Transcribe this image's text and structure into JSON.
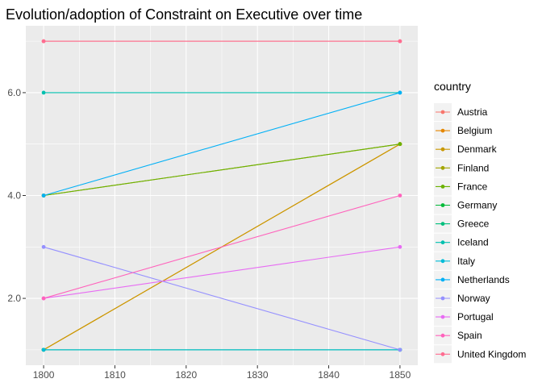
{
  "chart_data": {
    "type": "line",
    "title": "Evolution/adoption of Constraint on Executive over time",
    "xlabel": "",
    "ylabel": "",
    "xlim": [
      1800,
      1850
    ],
    "ylim": [
      1,
      7
    ],
    "x_ticks": [
      1800,
      1810,
      1820,
      1830,
      1840,
      1850
    ],
    "x_tick_labels": [
      "1800",
      "1810",
      "1820",
      "1830",
      "1840",
      "1850"
    ],
    "y_ticks": [
      2,
      4,
      6
    ],
    "y_tick_labels": [
      "2.0",
      "4.0",
      "6.0"
    ],
    "grid": true,
    "legend": {
      "title": "country",
      "position": "right"
    },
    "series": [
      {
        "name": "Austria",
        "color": "#F8766D",
        "x": [
          1800,
          1850
        ],
        "y": [
          7,
          7
        ]
      },
      {
        "name": "Belgium",
        "color": "#E58700",
        "x": [
          1800,
          1850
        ],
        "y": [
          1,
          5
        ]
      },
      {
        "name": "Denmark",
        "color": "#C99800",
        "x": [
          1800,
          1850
        ],
        "y": [
          1,
          5
        ]
      },
      {
        "name": "Finland",
        "color": "#A3A500",
        "x": [
          1800,
          1850
        ],
        "y": [
          4,
          5
        ]
      },
      {
        "name": "France",
        "color": "#6BB100",
        "x": [
          1800,
          1850
        ],
        "y": [
          4,
          5
        ]
      },
      {
        "name": "Germany",
        "color": "#00BA38",
        "x": [
          1800,
          1850
        ],
        "y": [
          1,
          1
        ]
      },
      {
        "name": "Greece",
        "color": "#00BF7D",
        "x": [
          1800,
          1850
        ],
        "y": [
          1,
          1
        ]
      },
      {
        "name": "Iceland",
        "color": "#00C0AF",
        "x": [
          1800,
          1850
        ],
        "y": [
          6,
          6
        ]
      },
      {
        "name": "Italy",
        "color": "#00BCD8",
        "x": [
          1800,
          1850
        ],
        "y": [
          1,
          1
        ]
      },
      {
        "name": "Netherlands",
        "color": "#00B0F6",
        "x": [
          1800,
          1850
        ],
        "y": [
          4,
          6
        ]
      },
      {
        "name": "Norway",
        "color": "#9590FF",
        "x": [
          1800,
          1850
        ],
        "y": [
          3,
          1
        ]
      },
      {
        "name": "Portugal",
        "color": "#E76BF3",
        "x": [
          1800,
          1850
        ],
        "y": [
          2,
          3
        ]
      },
      {
        "name": "Spain",
        "color": "#FF62BC",
        "x": [
          1800,
          1850
        ],
        "y": [
          2,
          4
        ]
      },
      {
        "name": "United Kingdom",
        "color": "#FF6C91",
        "x": [
          1800,
          1850
        ],
        "y": [
          7,
          7
        ]
      }
    ]
  }
}
